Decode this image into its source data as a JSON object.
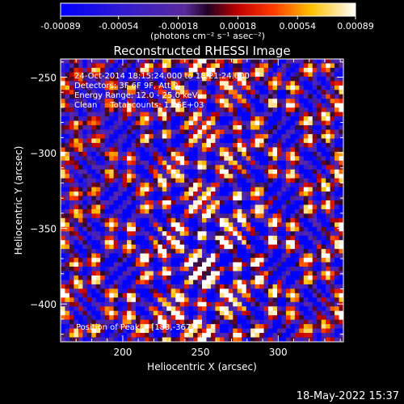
{
  "chart_data": {
    "type": "heatmap",
    "title": "Reconstructed RHESSI Image",
    "xlabel": "Heliocentric X (arcsec)",
    "ylabel": "Heliocentric Y (arcsec)",
    "xlim": [
      160,
      342
    ],
    "ylim": [
      -425,
      -238
    ],
    "xticks": [
      200,
      250,
      300
    ],
    "yticks": [
      -250,
      -300,
      -350,
      -400
    ],
    "colorbar": {
      "range": [
        -0.00089,
        0.00089
      ],
      "ticks": [
        "-0.00089",
        "-0.00054",
        "-0.00018",
        "0.00018",
        "0.00054",
        "0.00089"
      ],
      "unit_label": "(photons cm⁻² s⁻¹ asec⁻²)"
    },
    "info_lines": [
      "24-Oct-2014 18:15:24.000 to 18:21:24.000",
      "Detectors: 3F 6F 9F, Att 0",
      "Energy Range: 12.0 - 25.0 keV",
      "Clean     Total counts: 1.86E+03"
    ],
    "peak_text": "Position of Peak = [183,-367]",
    "peak": [
      183,
      -367
    ],
    "grid": false,
    "colormap": "blue-purple-red-yellow-white"
  },
  "footer": {
    "timestamp": "18-May-2022 15:37"
  }
}
